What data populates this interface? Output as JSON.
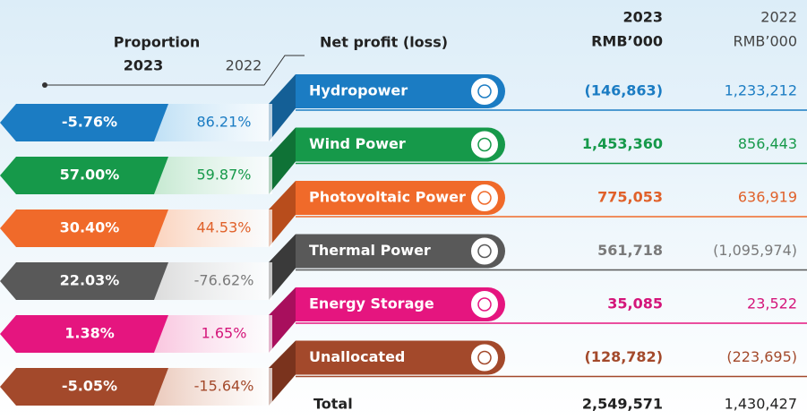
{
  "header": {
    "proportion": "Proportion",
    "prop_2023": "2023",
    "prop_2022": "2022",
    "net_profit": "Net profit (loss)",
    "col_2023": "2023",
    "col_2023_unit": "RMB’000",
    "col_2022": "2022",
    "col_2022_unit": "RMB’000"
  },
  "rows": [
    {
      "name": "Hydropower",
      "proportion_2023": "-5.76%",
      "proportion_2022": "86.21%",
      "profit_2023": "(146,863)",
      "profit_2022": "1,233,212"
    },
    {
      "name": "Wind Power",
      "proportion_2023": "57.00%",
      "proportion_2022": "59.87%",
      "profit_2023": "1,453,360",
      "profit_2022": "856,443"
    },
    {
      "name": "Photovoltaic Power",
      "proportion_2023": "30.40%",
      "proportion_2022": "44.53%",
      "profit_2023": "775,053",
      "profit_2022": "636,919"
    },
    {
      "name": "Thermal Power",
      "proportion_2023": "22.03%",
      "proportion_2022": "-76.62%",
      "profit_2023": "561,718",
      "profit_2022": "(1,095,974)"
    },
    {
      "name": "Energy Storage",
      "proportion_2023": "1.38%",
      "proportion_2022": "1.65%",
      "profit_2023": "35,085",
      "profit_2022": "23,522"
    },
    {
      "name": "Unallocated",
      "proportion_2023": "-5.05%",
      "proportion_2022": "-15.64%",
      "profit_2023": "(128,782)",
      "profit_2022": "(223,695)"
    }
  ],
  "total": {
    "label": "Total",
    "profit_2023": "2,549,571",
    "profit_2022": "1,430,427"
  }
}
